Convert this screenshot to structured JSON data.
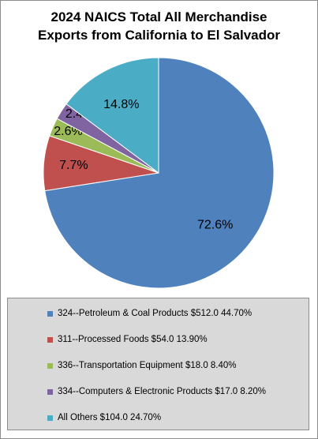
{
  "chart_data": {
    "type": "pie",
    "title_lines": [
      "2024 NAICS Total All Merchandise",
      "Exports from California to El Salvador"
    ],
    "slices": [
      {
        "label": "324--Petroleum & Coal Products $512.0 44.70%",
        "value": 72.6,
        "display": "72.6%",
        "color": "#4f81bd"
      },
      {
        "label": "311--Processed Foods $54.0 13.90%",
        "value": 7.7,
        "display": "7.7%",
        "color": "#c0504d"
      },
      {
        "label": "336--Transportation Equipment $18.0 8.40%",
        "value": 2.6,
        "display": "2.6%",
        "color": "#9bbb59"
      },
      {
        "label": "334--Computers & Electronic Products $17.0 8.20%",
        "value": 2.4,
        "display": "2.4%",
        "color": "#8064a2"
      },
      {
        "label": "All Others $104.0 24.70%",
        "value": 14.8,
        "display": "14.8%",
        "color": "#4bacc6"
      }
    ],
    "legend_position": "bottom"
  }
}
